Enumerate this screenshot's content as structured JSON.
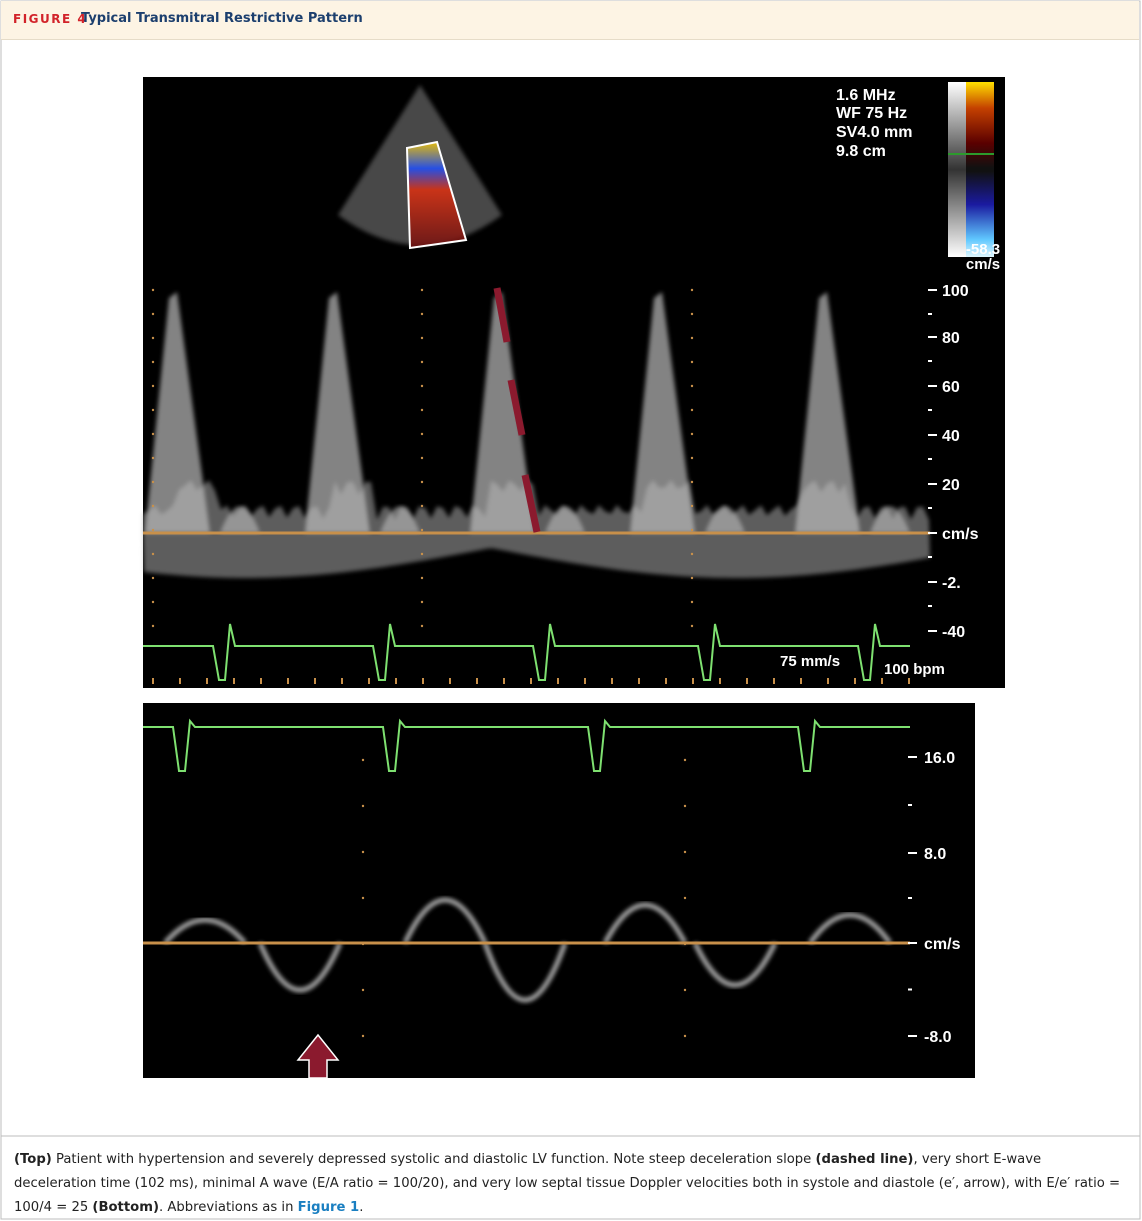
{
  "header": {
    "label": "FIGURE 4",
    "title": "Typical Transmitral Restrictive Pattern"
  },
  "top_panel": {
    "settings": [
      "1.6 MHz",
      "WF 75 Hz",
      "SV4.0 mm",
      "9.8 cm"
    ],
    "color_scale": [
      "-58.3",
      "cm/s"
    ],
    "scale": [
      "100",
      "80",
      "60",
      "40",
      "20",
      "cm/s",
      "-2.",
      "-40"
    ],
    "sweep": "75 mm/s",
    "heart_rate": "100 bpm"
  },
  "bottom_panel": {
    "scale": [
      "16.0",
      "8.0",
      "cm/s",
      "-8.0"
    ]
  },
  "caption": [
    "(Top)",
    " Patient with hypertension and severely depressed systolic and diastolic LV function. Note steep deceleration slope ",
    "(dashed line)",
    ", very short E-wave deceleration time (102 ms), minimal A wave (E/A ratio = 100/20), and very low septal tissue Doppler velocities both in systole and diastole (e′, arrow), with E/e′ ratio = 100/4 = 25 ",
    "(Bottom)",
    ". Abbreviations as in ",
    "Figure 1",
    "."
  ]
}
